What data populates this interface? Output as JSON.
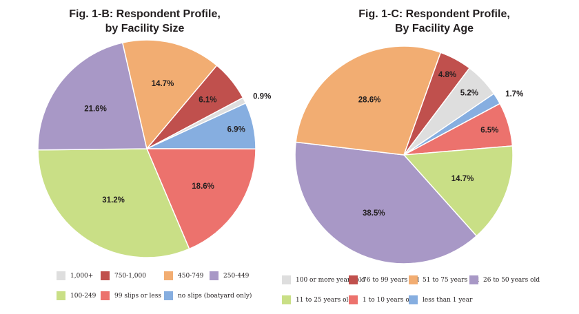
{
  "colors": {
    "gray": "#dedede",
    "darkred": "#c0504d",
    "orange": "#f2ad72",
    "purple": "#a898c6",
    "green": "#c9df86",
    "salmon": "#ec726d",
    "blue": "#86aee0"
  },
  "chart_data": [
    {
      "type": "pie",
      "title": "Fig. 1-B: Respondent Profile,",
      "subtitle": "by Facility Size",
      "slices": [
        {
          "label": "1,000+",
          "value": 0.9,
          "value_label": "0.9%",
          "color": "#dedede"
        },
        {
          "label": "no slips (boatyard only)",
          "value": 6.9,
          "value_label": "6.9%",
          "color": "#86aee0"
        },
        {
          "label": "99 slips or less",
          "value": 18.6,
          "value_label": "18.6%",
          "color": "#ec726d"
        },
        {
          "label": "100-249",
          "value": 31.2,
          "value_label": "31.2%",
          "color": "#c9df86"
        },
        {
          "label": "250-449",
          "value": 21.6,
          "value_label": "21.6%",
          "color": "#a898c6"
        },
        {
          "label": "450-749",
          "value": 14.7,
          "value_label": "14.7%",
          "color": "#f2ad72"
        },
        {
          "label": "750-1,000",
          "value": 6.1,
          "value_label": "6.1%",
          "color": "#c0504d"
        }
      ],
      "legend": [
        {
          "label": "1,000+",
          "color": "#dedede"
        },
        {
          "label": "750-1,000",
          "color": "#c0504d"
        },
        {
          "label": "450-749",
          "color": "#f2ad72"
        },
        {
          "label": "250-449",
          "color": "#a898c6"
        },
        {
          "label": "100-249",
          "color": "#c9df86"
        },
        {
          "label": "99 slips or less",
          "color": "#ec726d"
        },
        {
          "label": "no slips (boatyard only)",
          "color": "#86aee0"
        }
      ],
      "legend_position": "bottom"
    },
    {
      "type": "pie",
      "title": "Fig. 1-C: Respondent Profile,",
      "subtitle": "By Facility Age",
      "slices": [
        {
          "label": "100 or more years old",
          "value": 5.2,
          "value_label": "5.2%",
          "color": "#dedede"
        },
        {
          "label": "less than 1 year",
          "value": 1.7,
          "value_label": "1.7%",
          "color": "#86aee0"
        },
        {
          "label": "1 to 10 years old",
          "value": 6.5,
          "value_label": "6.5%",
          "color": "#ec726d"
        },
        {
          "label": "11 to 25 years old",
          "value": 14.7,
          "value_label": "14.7%",
          "color": "#c9df86"
        },
        {
          "label": "26 to 50 years old",
          "value": 38.5,
          "value_label": "38.5%",
          "color": "#a898c6"
        },
        {
          "label": "51 to 75 years old",
          "value": 28.6,
          "value_label": "28.6%",
          "color": "#f2ad72"
        },
        {
          "label": "76 to 99 years old",
          "value": 4.8,
          "value_label": "4.8%",
          "color": "#c0504d"
        }
      ],
      "legend": [
        {
          "label": "100 or more years old",
          "color": "#dedede"
        },
        {
          "label": "76 to 99 years old",
          "color": "#c0504d"
        },
        {
          "label": "51 to 75 years old",
          "color": "#f2ad72"
        },
        {
          "label": "26 to 50 years old",
          "color": "#a898c6"
        },
        {
          "label": "11 to 25 years old",
          "color": "#c9df86"
        },
        {
          "label": "1 to 10 years old",
          "color": "#ec726d"
        },
        {
          "label": "less than 1 year",
          "color": "#86aee0"
        }
      ],
      "legend_position": "bottom"
    }
  ]
}
